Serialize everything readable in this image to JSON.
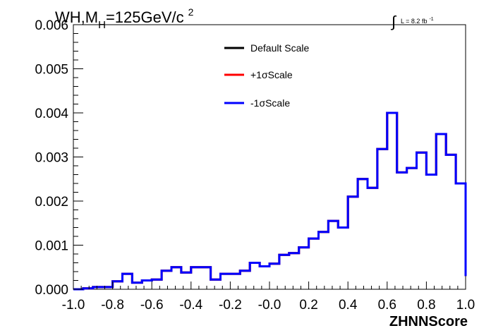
{
  "chart_data": {
    "type": "line",
    "style": "step-histogram",
    "title": {
      "prefix": "WH,M",
      "subscript": "H",
      "main": "=125GeV/c",
      "superscript": "2"
    },
    "lumi": {
      "integral_symbol": "∫",
      "text": "L = 8.2 fb",
      "superscript": "-1"
    },
    "xlabel": "ZHNNScore",
    "ylabel": "",
    "xlim": [
      -1.0,
      1.0
    ],
    "ylim": [
      0.0,
      0.006
    ],
    "x_ticks": [
      "-1.0",
      "-0.8",
      "-0.6",
      "-0.4",
      "-0.2",
      "-0.0",
      "0.2",
      "0.4",
      "0.6",
      "0.8",
      "1.0"
    ],
    "y_ticks": [
      "0.000",
      "0.001",
      "0.002",
      "0.003",
      "0.004",
      "0.005",
      "0.006"
    ],
    "grid": false,
    "legend_position": "top-center",
    "bin_edges": [
      -1.0,
      -0.95,
      -0.9,
      -0.85,
      -0.8,
      -0.75,
      -0.7,
      -0.65,
      -0.6,
      -0.55,
      -0.5,
      -0.45,
      -0.4,
      -0.35,
      -0.3,
      -0.25,
      -0.2,
      -0.15,
      -0.1,
      -0.05,
      0.0,
      0.05,
      0.1,
      0.15,
      0.2,
      0.25,
      0.3,
      0.35,
      0.4,
      0.45,
      0.5,
      0.55,
      0.6,
      0.65,
      0.7,
      0.75,
      0.8,
      0.85,
      0.9,
      0.95,
      1.0
    ],
    "series": [
      {
        "name": "Default Scale",
        "color": "#000000",
        "values": [
          0.0,
          2e-05,
          5e-05,
          5e-05,
          0.00018,
          0.00035,
          0.00015,
          0.0002,
          0.00022,
          0.00042,
          0.0005,
          0.00038,
          0.0005,
          0.0005,
          0.00022,
          0.00035,
          0.00035,
          0.00042,
          0.0006,
          0.00052,
          0.00058,
          0.00078,
          0.00082,
          0.00095,
          0.00115,
          0.0013,
          0.00155,
          0.0014,
          0.0021,
          0.0025,
          0.0023,
          0.00318,
          0.004,
          0.00265,
          0.00275,
          0.0031,
          0.0026,
          0.00352,
          0.00305,
          0.0024,
          0.0003
        ]
      },
      {
        "name": "+1σScale",
        "color": "#ff0000",
        "values": [
          0.0,
          2e-05,
          5e-05,
          5e-05,
          0.00018,
          0.00035,
          0.00015,
          0.0002,
          0.00022,
          0.00042,
          0.0005,
          0.00038,
          0.0005,
          0.0005,
          0.00022,
          0.00035,
          0.00035,
          0.00042,
          0.0006,
          0.00052,
          0.00058,
          0.00078,
          0.00082,
          0.00095,
          0.00115,
          0.0013,
          0.00155,
          0.0014,
          0.0021,
          0.0025,
          0.0023,
          0.00318,
          0.004,
          0.00265,
          0.00275,
          0.0031,
          0.0026,
          0.00352,
          0.00305,
          0.0024,
          0.0003
        ]
      },
      {
        "name": "-1σScale",
        "color": "#0000ff",
        "values": [
          0.0,
          2e-05,
          5e-05,
          5e-05,
          0.00018,
          0.00035,
          0.00015,
          0.0002,
          0.00022,
          0.00042,
          0.0005,
          0.00038,
          0.0005,
          0.0005,
          0.00022,
          0.00035,
          0.00035,
          0.00042,
          0.0006,
          0.00052,
          0.00058,
          0.00078,
          0.00082,
          0.00095,
          0.00115,
          0.0013,
          0.00155,
          0.0014,
          0.0021,
          0.0025,
          0.0023,
          0.00318,
          0.004,
          0.00265,
          0.00275,
          0.0031,
          0.0026,
          0.00352,
          0.00305,
          0.0024,
          0.0003
        ]
      }
    ]
  }
}
